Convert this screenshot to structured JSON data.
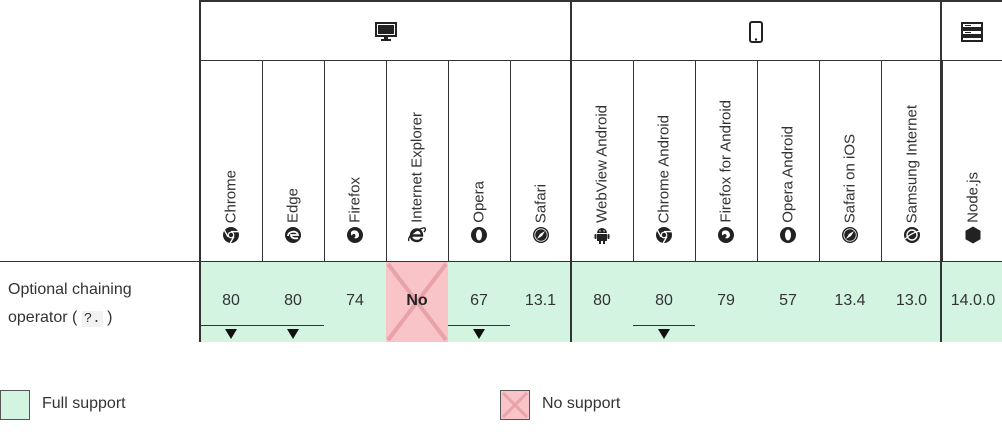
{
  "groups": [
    {
      "name": "desktop",
      "icon": "desktop-icon"
    },
    {
      "name": "mobile",
      "icon": "mobile-phone-icon"
    },
    {
      "name": "server",
      "icon": "server-icon"
    }
  ],
  "browsers": [
    {
      "name": "Chrome",
      "icon": "chrome-icon",
      "value": "80",
      "support": "full",
      "note": true
    },
    {
      "name": "Edge",
      "icon": "edge-icon",
      "value": "80",
      "support": "full",
      "note": true
    },
    {
      "name": "Firefox",
      "icon": "firefox-icon",
      "value": "74",
      "support": "full",
      "note": false
    },
    {
      "name": "Internet Explorer",
      "icon": "internet-explorer-icon",
      "value": "No",
      "support": "none",
      "note": false
    },
    {
      "name": "Opera",
      "icon": "opera-icon",
      "value": "67",
      "support": "full",
      "note": true
    },
    {
      "name": "Safari",
      "icon": "safari-icon",
      "value": "13.1",
      "support": "full",
      "note": false
    },
    {
      "name": "WebView Android",
      "icon": "android-icon",
      "value": "80",
      "support": "full",
      "note": false
    },
    {
      "name": "Chrome Android",
      "icon": "chrome-icon",
      "value": "80",
      "support": "full",
      "note": true
    },
    {
      "name": "Firefox for Android",
      "icon": "firefox-icon",
      "value": "79",
      "support": "full",
      "note": false
    },
    {
      "name": "Opera Android",
      "icon": "opera-icon",
      "value": "57",
      "support": "full",
      "note": false
    },
    {
      "name": "Safari on iOS",
      "icon": "safari-icon",
      "value": "13.4",
      "support": "full",
      "note": false
    },
    {
      "name": "Samsung Internet",
      "icon": "samsung-internet-icon",
      "value": "13.0",
      "support": "full",
      "note": false
    },
    {
      "name": "Node.js",
      "icon": "nodejs-icon",
      "value": "14.0.0",
      "support": "full",
      "note": false
    }
  ],
  "feature": {
    "label": "Optional chaining",
    "label_suffix": "operator (",
    "code": "?.",
    "label_end": ")"
  },
  "legend": {
    "full": "Full support",
    "none": "No support"
  },
  "colors": {
    "full": "#d4f4e2",
    "none": "#f8c4c8"
  }
}
